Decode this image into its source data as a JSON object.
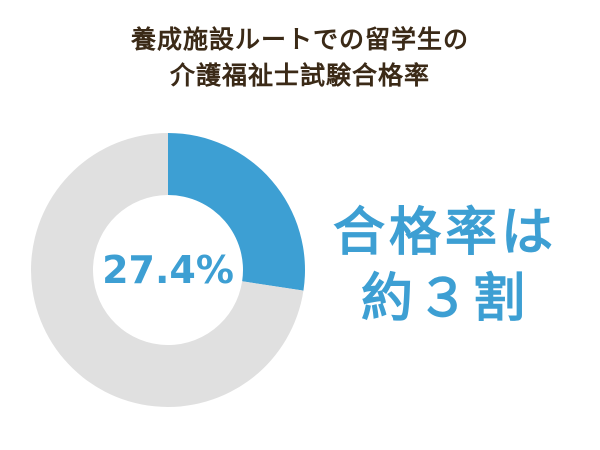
{
  "chart_data": {
    "type": "pie",
    "variant": "donut",
    "title_lines": [
      "養成施設ルートでの留学生の",
      "介護福祉士試験合格率"
    ],
    "values": [
      27.4,
      72.6
    ],
    "colors": [
      "#3d9fd3",
      "#e0e0e0"
    ],
    "center_label": "27.4%",
    "annotation_lines": [
      "合格率は",
      "約３割"
    ]
  }
}
